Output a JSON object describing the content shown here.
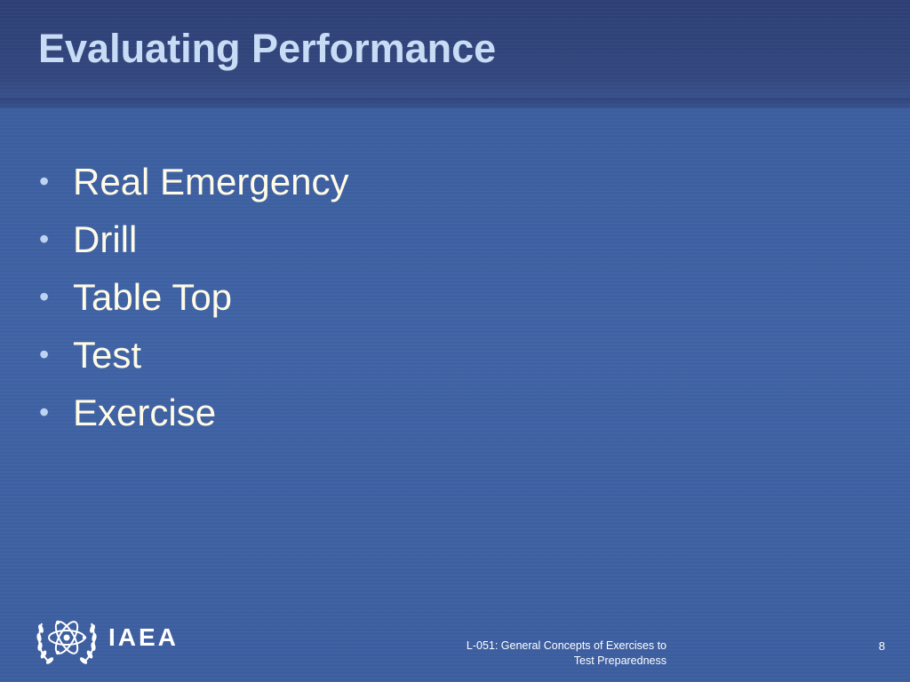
{
  "slide": {
    "title": "Evaluating Performance",
    "bullets": [
      "Real Emergency",
      "Drill",
      "Table Top",
      "Test",
      "Exercise"
    ],
    "bullet_symbol": "•"
  },
  "footer": {
    "logo_text": "IAEA",
    "course_line_1": "L-051: General Concepts of Exercises to",
    "course_line_2": "Test Preparedness",
    "page_number": "8"
  },
  "colors": {
    "background": "#3d5e9f",
    "header_band": "#2d3f74",
    "title": "#c9dcf6",
    "bullet_text": "#fffbe6",
    "bullet_symbol": "#bcd3f2",
    "footer_text": "#ffffff"
  },
  "icons": {
    "logo_emblem": "iaea-atom-laurel-emblem"
  }
}
